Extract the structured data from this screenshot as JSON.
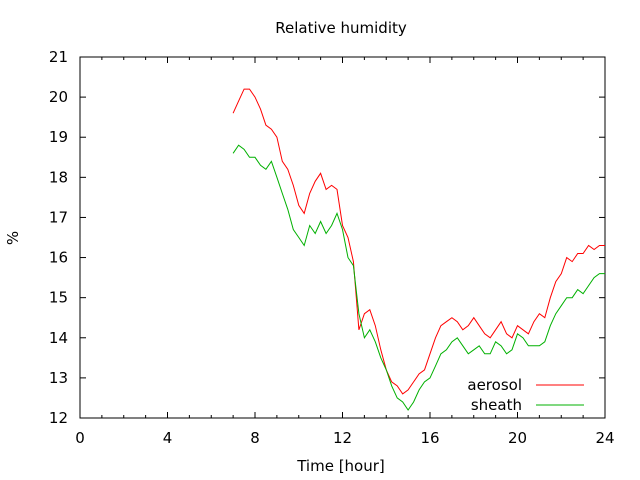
{
  "chart_data": {
    "type": "line",
    "title": "Relative humidity",
    "xlabel": "Time [hour]",
    "ylabel": "%",
    "xlim": [
      0,
      24
    ],
    "ylim": [
      12,
      21
    ],
    "xticks": [
      0,
      4,
      8,
      12,
      16,
      20,
      24
    ],
    "yticks": [
      12,
      13,
      14,
      15,
      16,
      17,
      18,
      19,
      20,
      21
    ],
    "grid": false,
    "legend_position": "bottom-right",
    "series": [
      {
        "name": "aerosol",
        "color": "#ff0000",
        "x": [
          7.0,
          7.25,
          7.5,
          7.75,
          8.0,
          8.25,
          8.5,
          8.75,
          9.0,
          9.25,
          9.5,
          9.75,
          10.0,
          10.25,
          10.5,
          10.75,
          11.0,
          11.25,
          11.5,
          11.75,
          12.0,
          12.25,
          12.5,
          12.75,
          13.0,
          13.25,
          13.5,
          13.75,
          14.0,
          14.25,
          14.5,
          14.75,
          15.0,
          15.25,
          15.5,
          15.75,
          16.0,
          16.25,
          16.5,
          16.75,
          17.0,
          17.25,
          17.5,
          17.75,
          18.0,
          18.25,
          18.5,
          18.75,
          19.0,
          19.25,
          19.5,
          19.75,
          20.0,
          20.25,
          20.5,
          20.75,
          21.0,
          21.25,
          21.5,
          21.75,
          22.0,
          22.25,
          22.5,
          22.75,
          23.0,
          23.25,
          23.5,
          23.75,
          24.0
        ],
        "y": [
          19.6,
          19.9,
          20.2,
          20.2,
          20.0,
          19.7,
          19.3,
          19.2,
          19.0,
          18.4,
          18.2,
          17.8,
          17.3,
          17.1,
          17.6,
          17.9,
          18.1,
          17.7,
          17.8,
          17.7,
          16.8,
          16.5,
          15.9,
          14.2,
          14.6,
          14.7,
          14.3,
          13.7,
          13.2,
          12.9,
          12.8,
          12.6,
          12.7,
          12.9,
          13.1,
          13.2,
          13.6,
          14.0,
          14.3,
          14.4,
          14.5,
          14.4,
          14.2,
          14.3,
          14.5,
          14.3,
          14.1,
          14.0,
          14.2,
          14.4,
          14.1,
          14.0,
          14.3,
          14.2,
          14.1,
          14.4,
          14.6,
          14.5,
          15.0,
          15.4,
          15.6,
          16.0,
          15.9,
          16.1,
          16.1,
          16.3,
          16.2,
          16.3,
          16.3
        ]
      },
      {
        "name": "sheath",
        "color": "#00b000",
        "x": [
          7.0,
          7.25,
          7.5,
          7.75,
          8.0,
          8.25,
          8.5,
          8.75,
          9.0,
          9.25,
          9.5,
          9.75,
          10.0,
          10.25,
          10.5,
          10.75,
          11.0,
          11.25,
          11.5,
          11.75,
          12.0,
          12.25,
          12.5,
          12.75,
          13.0,
          13.25,
          13.5,
          13.75,
          14.0,
          14.25,
          14.5,
          14.75,
          15.0,
          15.25,
          15.5,
          15.75,
          16.0,
          16.25,
          16.5,
          16.75,
          17.0,
          17.25,
          17.5,
          17.75,
          18.0,
          18.25,
          18.5,
          18.75,
          19.0,
          19.25,
          19.5,
          19.75,
          20.0,
          20.25,
          20.5,
          20.75,
          21.0,
          21.25,
          21.5,
          21.75,
          22.0,
          22.25,
          22.5,
          22.75,
          23.0,
          23.25,
          23.5,
          23.75,
          24.0
        ],
        "y": [
          18.6,
          18.8,
          18.7,
          18.5,
          18.5,
          18.3,
          18.2,
          18.4,
          18.0,
          17.6,
          17.2,
          16.7,
          16.5,
          16.3,
          16.8,
          16.6,
          16.9,
          16.6,
          16.8,
          17.1,
          16.7,
          16.0,
          15.8,
          14.6,
          14.0,
          14.2,
          13.9,
          13.5,
          13.2,
          12.8,
          12.5,
          12.4,
          12.2,
          12.4,
          12.7,
          12.9,
          13.0,
          13.3,
          13.6,
          13.7,
          13.9,
          14.0,
          13.8,
          13.6,
          13.7,
          13.8,
          13.6,
          13.6,
          13.9,
          13.8,
          13.6,
          13.7,
          14.1,
          14.0,
          13.8,
          13.8,
          13.8,
          13.9,
          14.3,
          14.6,
          14.8,
          15.0,
          15.0,
          15.2,
          15.1,
          15.3,
          15.5,
          15.6,
          15.6
        ]
      }
    ]
  }
}
